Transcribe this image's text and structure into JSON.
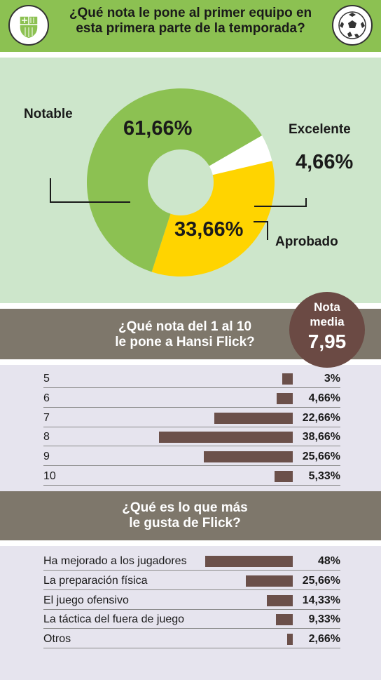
{
  "header": {
    "title_line1": "¿Qué nota le pone al primer equipo en",
    "title_line2": "esta primera parte de la temporada?",
    "left_badge_icon": "club-crest-icon",
    "right_badge_icon": "soccer-ball-icon"
  },
  "chart_data": [
    {
      "type": "pie",
      "slices": [
        {
          "label": "Notable",
          "value": 61.66,
          "display": "61,66%",
          "color": "#8cc152"
        },
        {
          "label": "Excelente",
          "value": 4.66,
          "display": "4,66%",
          "color": "#ffffff"
        },
        {
          "label": "Aprobado",
          "value": 33.66,
          "display": "33,66%",
          "color": "#ffd400"
        }
      ]
    },
    {
      "type": "bar",
      "orientation": "horizontal",
      "title_line1": "¿Qué nota del 1 al 10",
      "title_line2": "le pone a Hansi Flick?",
      "categories": [
        "5",
        "6",
        "7",
        "8",
        "9",
        "10"
      ],
      "values": [
        3,
        4.66,
        22.66,
        38.66,
        25.66,
        5.33
      ],
      "display": [
        "3%",
        "4,66%",
        "22,66%",
        "38,66%",
        "25,66%",
        "5,33%"
      ],
      "color": "#6b504a"
    },
    {
      "type": "bar",
      "orientation": "horizontal",
      "title_line1": "¿Qué es lo que más",
      "title_line2": "le gusta de Flick?",
      "categories": [
        "Ha mejorado a los jugadores",
        "La preparación física",
        "El juego ofensivo",
        "La táctica del fuera de juego",
        "Otros"
      ],
      "values": [
        48,
        25.66,
        14.33,
        9.33,
        2.66
      ],
      "display": [
        "48%",
        "25,66%",
        "14,33%",
        "9,33%",
        "2,66%"
      ],
      "color": "#6b504a"
    }
  ],
  "average": {
    "line1": "Nota",
    "line2": "media",
    "value": "7,95"
  }
}
